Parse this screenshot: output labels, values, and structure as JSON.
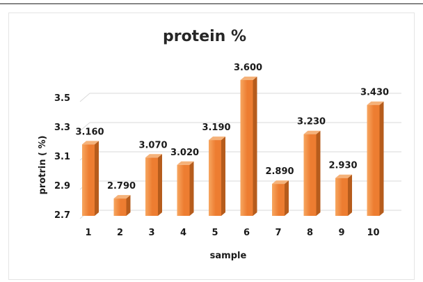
{
  "chart_data": {
    "type": "bar",
    "title": "protein %",
    "xlabel": "sample",
    "ylabel": "protrin ( %)",
    "categories": [
      "1",
      "2",
      "3",
      "4",
      "5",
      "6",
      "7",
      "8",
      "9",
      "10"
    ],
    "values": [
      3.16,
      2.79,
      3.07,
      3.02,
      3.19,
      3.6,
      2.89,
      3.23,
      2.93,
      3.43
    ],
    "data_labels": [
      "3.160",
      "2.790",
      "3.070",
      "3.020",
      "3.190",
      "3.600",
      "2.890",
      "3.230",
      "2.930",
      "3.430"
    ],
    "ylim": [
      2.7,
      3.6
    ],
    "yticks": [
      "2.7",
      "2.9",
      "3.1",
      "3.3",
      "3.5"
    ],
    "grid": true,
    "legend": "none",
    "colors": {
      "bar_front": "#ed7d31",
      "bar_light": "#f7a660",
      "bar_side": "#b65c1c",
      "bar_top": "#f5b27a",
      "grid": "#d9d9d9"
    }
  }
}
